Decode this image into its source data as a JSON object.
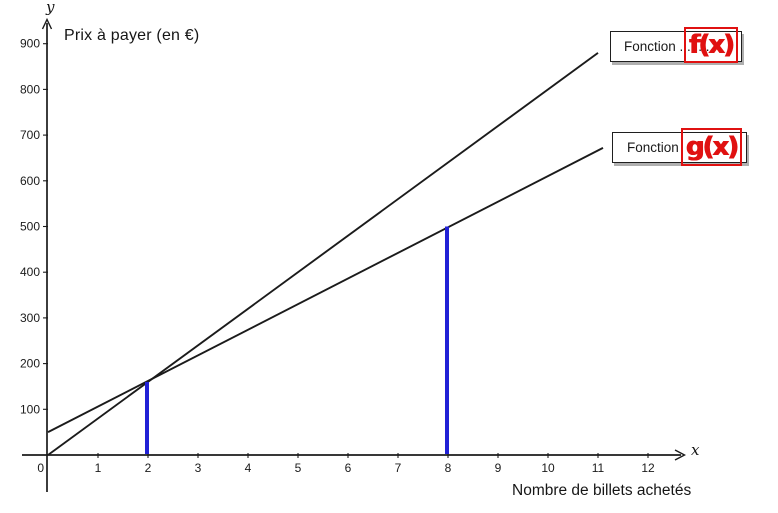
{
  "page": {
    "background": "#ffffff"
  },
  "colors": {
    "ink": "#1b1b1b",
    "highlight_blue": "#2121d6",
    "annotation_red": "#e01111"
  },
  "chart_data": {
    "type": "line",
    "title": "Prix à payer (en €)",
    "xlabel": "Nombre de billets achetés",
    "ylabel": "Prix à payer (en €)",
    "x_axis_letter": "x",
    "y_axis_letter": "y",
    "origin_label": "0",
    "x_ticks": [
      1,
      2,
      3,
      4,
      5,
      6,
      7,
      8,
      9,
      10,
      11,
      12
    ],
    "y_ticks": [
      100,
      200,
      300,
      400,
      500,
      600,
      700,
      800,
      900
    ],
    "xlim": [
      0,
      12.7
    ],
    "ylim": [
      0,
      950
    ],
    "grid": false,
    "legend_position": "top-right",
    "series": [
      {
        "name": "f(x)",
        "color": "#1b1b1b",
        "points": [
          [
            0,
            0
          ],
          [
            11.0,
            880
          ]
        ]
      },
      {
        "name": "g(x)",
        "color": "#1b1b1b",
        "points": [
          [
            0,
            50
          ],
          [
            11.1,
            672
          ]
        ]
      }
    ],
    "highlight_segments": [
      {
        "x": 2,
        "y_top": 160,
        "color": "#2121d6"
      },
      {
        "x": 8,
        "y_top": 500,
        "color": "#2121d6"
      }
    ]
  },
  "legend": {
    "f": {
      "label": "Fonction ........",
      "annotation": "f(x)"
    },
    "g": {
      "label": "Fonction",
      "annotation": "g(x)"
    }
  }
}
